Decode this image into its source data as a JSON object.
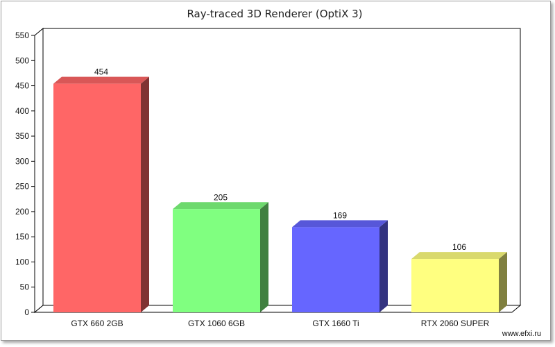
{
  "chart_data": {
    "type": "bar",
    "title": "Ray-traced 3D Renderer (OptiX 3)",
    "xlabel": "",
    "ylabel": "",
    "categories": [
      "GTX 660 2GB",
      "GTX 1060 6GB",
      "GTX 1660 Ti",
      "RTX 2060 SUPER"
    ],
    "values": [
      454,
      205,
      169,
      106
    ],
    "ylim": [
      0,
      550
    ],
    "yticks": [
      0,
      50,
      100,
      150,
      200,
      250,
      300,
      350,
      400,
      450,
      500,
      550
    ],
    "bar_colors": [
      "#ff6666",
      "#80ff80",
      "#6666ff",
      "#ffff80"
    ],
    "data_labels": true,
    "grid": false,
    "legend": "none"
  },
  "watermark": "www.efxi.ru"
}
